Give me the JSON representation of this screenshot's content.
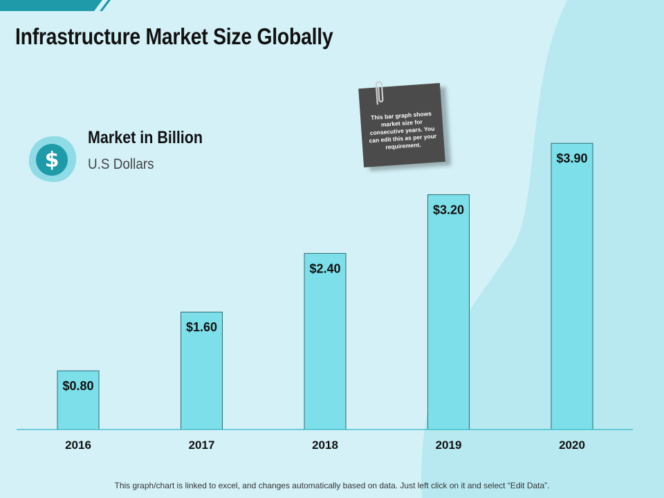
{
  "page": {
    "title": "Infrastructure Market Size Globally",
    "footer": "This graph/chart is linked to excel, and changes automatically based on data. Just left click on it and select “Edit Data”."
  },
  "legend": {
    "heading": "Market in Billion",
    "subheading": "U.S Dollars",
    "icon": "dollar-icon"
  },
  "note": {
    "text": "This bar graph shows market size for consecutive years. You can edit this as per your requirement."
  },
  "colors": {
    "background": "#d3f1f7",
    "bar": "#7ddfe9",
    "bar_border": "#2a6b72",
    "axis": "#35b7c6",
    "accent": "#2a96a4"
  },
  "chart_data": {
    "type": "bar",
    "title": "Infrastructure Market Size Globally",
    "categories": [
      "2016",
      "2017",
      "2018",
      "2019",
      "2020"
    ],
    "values": [
      0.8,
      1.6,
      2.4,
      3.2,
      3.9
    ],
    "data_labels": [
      "$0.80",
      "$1.60",
      "$2.40",
      "$3.20",
      "$3.90"
    ],
    "ylabel": "Market in Billion (U.S Dollars)",
    "xlabel": "",
    "ylim": [
      0,
      4.75
    ],
    "grid": false,
    "legend": "none"
  }
}
